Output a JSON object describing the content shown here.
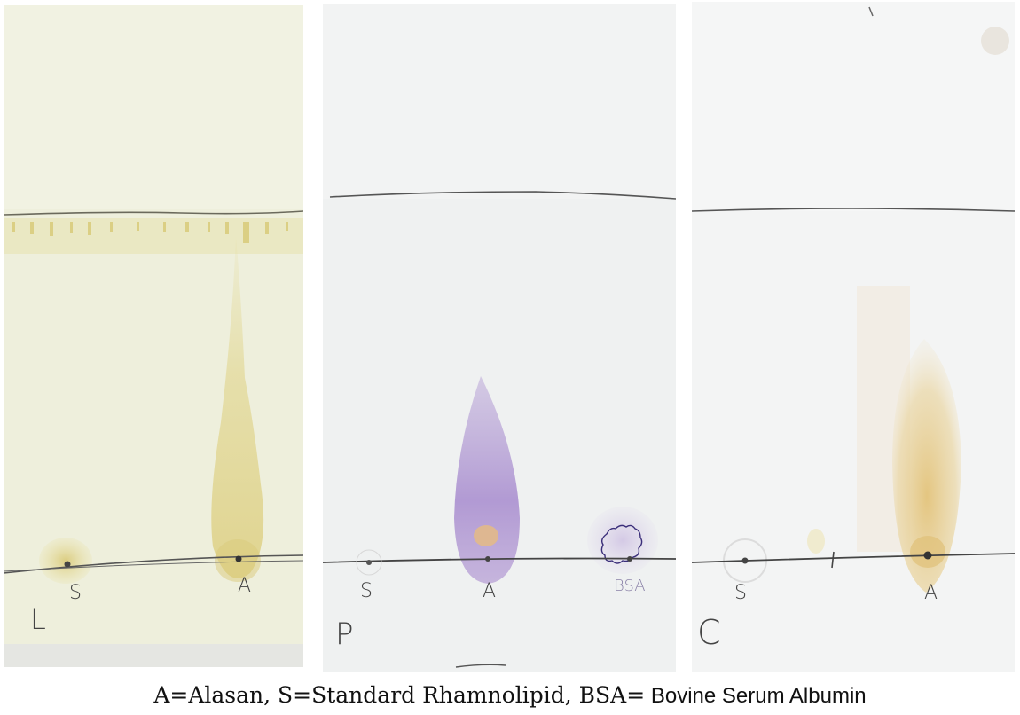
{
  "plates": {
    "l": {
      "letter": "L",
      "lane_labels": [
        "S",
        "A"
      ]
    },
    "p": {
      "letter": "P",
      "lane_labels": [
        "S",
        "A",
        "BSA"
      ]
    },
    "c": {
      "letter": "C",
      "lane_labels": [
        "S",
        "A"
      ]
    }
  },
  "caption": {
    "serif_part": "A=Alasan, S=Standard Rhamnolipid, BSA=",
    "sans_part": " Bovine Serum Albumin"
  },
  "colors": {
    "plate_l": "#eeefdc",
    "plate_p": "#eff1f1",
    "plate_c": "#f3f4f4",
    "yellow_stain": "#e2d58c",
    "purple_stain": "#a98fcd",
    "pencil": "#555555"
  }
}
